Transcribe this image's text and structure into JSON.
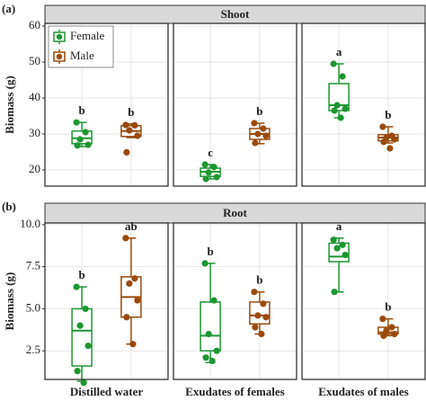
{
  "chart_data": [
    {
      "type": "boxplot",
      "panel_label": "(a)",
      "title": "Shoot",
      "y_label": "Biomass (g)",
      "ylim": [
        15.5,
        60.75
      ],
      "yticks": [
        20,
        30,
        40,
        50,
        60
      ],
      "grid": true,
      "legend": "top-left",
      "series": [
        {
          "name": "Female",
          "color": "#1e9632",
          "boxes": [
            {
              "whisker_low": 26.5,
              "q1": 27.3,
              "median": 28.8,
              "q3": 30.8,
              "whisker_high": 33.2,
              "points": [
                33.2,
                30.5,
                28.5,
                27,
                26.8
              ],
              "letter": "b"
            },
            {
              "whisker_low": 17.5,
              "q1": 18.2,
              "median": 19.5,
              "q3": 20.5,
              "whisker_high": 21.5,
              "points": [
                21.5,
                20.8,
                19.3,
                18,
                17.5
              ],
              "letter": "c"
            },
            {
              "whisker_low": 34.5,
              "q1": 36.5,
              "median": 38,
              "q3": 44,
              "whisker_high": 49.5,
              "points": [
                49.5,
                46,
                38,
                37,
                36.5,
                34.5
              ],
              "letter": "a"
            }
          ]
        },
        {
          "name": "Male",
          "color": "#9a4a0c",
          "boxes": [
            {
              "whisker_low": 29,
              "q1": 29.3,
              "median": 30.8,
              "q3": 32.3,
              "whisker_high": 32.8,
              "points": [
                32.5,
                32.4,
                31,
                29.5,
                24.9
              ],
              "letter": "b"
            },
            {
              "whisker_low": 27.3,
              "q1": 28.5,
              "median": 30,
              "q3": 31.5,
              "whisker_high": 33,
              "points": [
                33,
                31.5,
                30,
                29.5,
                27.5
              ],
              "letter": "b"
            },
            {
              "whisker_low": 27.5,
              "q1": 28.1,
              "median": 29,
              "q3": 29.8,
              "whisker_high": 32,
              "points": [
                32,
                29.5,
                29,
                28.5,
                27.8,
                26
              ],
              "letter": "b"
            }
          ]
        }
      ]
    },
    {
      "type": "boxplot",
      "panel_label": "(b)",
      "title": "Root",
      "y_label": "Biomass (g)",
      "ylim": [
        0.8,
        10.1
      ],
      "yticks": [
        {
          "value": 2.5,
          "label": "2.5"
        },
        {
          "value": 5,
          "label": "5.0"
        },
        {
          "value": 7.5,
          "label": "7.5"
        },
        {
          "value": 10,
          "label": "10.0"
        }
      ],
      "grid": true,
      "facets": [
        "Distilled water",
        "Exudates of females",
        "Exudates of males"
      ],
      "series": [
        {
          "color": "#1e9632",
          "boxes": [
            {
              "whisker_low": 0.7,
              "q1": 1.6,
              "median": 3.7,
              "q3": 5,
              "whisker_high": 6.3,
              "points": [
                6.3,
                5,
                4,
                2.8,
                1.3,
                0.6
              ],
              "letter": "b"
            },
            {
              "whisker_low": 1.8,
              "q1": 2.5,
              "median": 3.4,
              "q3": 5.4,
              "whisker_high": 7.7,
              "points": [
                7.7,
                5.5,
                3.5,
                2.5,
                2.1,
                1.9
              ],
              "letter": "b"
            },
            {
              "whisker_low": 6,
              "q1": 7.8,
              "median": 8.1,
              "q3": 8.9,
              "whisker_high": 9.2,
              "points": [
                9.1,
                8.8,
                8.6,
                8.2,
                6
              ],
              "letter": "a"
            }
          ]
        },
        {
          "color": "#9a4a0c",
          "boxes": [
            {
              "whisker_low": 2.9,
              "q1": 4.5,
              "median": 5.7,
              "q3": 6.9,
              "whisker_high": 9.2,
              "points": [
                9.2,
                6.8,
                6.5,
                5.5,
                4.5,
                2.9
              ],
              "letter": "ab"
            },
            {
              "whisker_low": 3.5,
              "q1": 4.1,
              "median": 4.6,
              "q3": 5.4,
              "whisker_high": 6,
              "points": [
                6,
                5.3,
                4.6,
                4.5,
                3.9,
                3.5
              ],
              "letter": "b"
            },
            {
              "whisker_low": 3.4,
              "q1": 3.5,
              "median": 3.6,
              "q3": 3.9,
              "whisker_high": 4.4,
              "points": [
                4.4,
                3.9,
                3.7,
                3.5,
                3.4
              ],
              "letter": "b"
            }
          ]
        }
      ]
    }
  ]
}
